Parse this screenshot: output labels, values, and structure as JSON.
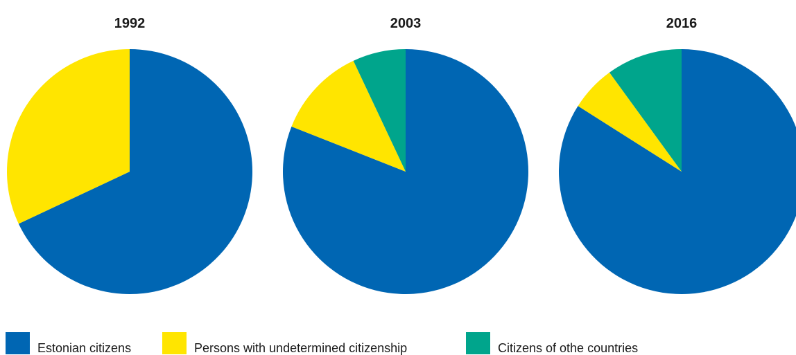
{
  "chart_data": [
    {
      "type": "pie",
      "title": "1992",
      "labels": [
        "Estonian citizens",
        "Persons with undetermined citizenship"
      ],
      "values": [
        68,
        32
      ],
      "colors": [
        "#0066b3",
        "#ffe500"
      ]
    },
    {
      "type": "pie",
      "title": "2003",
      "labels": [
        "Estonian citizens",
        "Persons with undetermined citizenship",
        "Citizens of othe countries"
      ],
      "values": [
        81,
        12,
        7
      ],
      "colors": [
        "#0066b3",
        "#ffe500",
        "#00a58c"
      ]
    },
    {
      "type": "pie",
      "title": "2016",
      "labels": [
        "Estonian citizens",
        "Persons with undetermined citizenship",
        "Citizens of othe countries"
      ],
      "values": [
        84,
        6,
        10
      ],
      "colors": [
        "#0066b3",
        "#ffe500",
        "#00a58c"
      ]
    }
  ],
  "legend": {
    "placement": "bottom-left",
    "items": [
      {
        "label": "Estonian citizens",
        "color": "#0066b3"
      },
      {
        "label": "Persons with undetermined citizenship",
        "color": "#ffe500"
      },
      {
        "label": "Citizens of othe countries",
        "color": "#00a58c"
      }
    ]
  }
}
